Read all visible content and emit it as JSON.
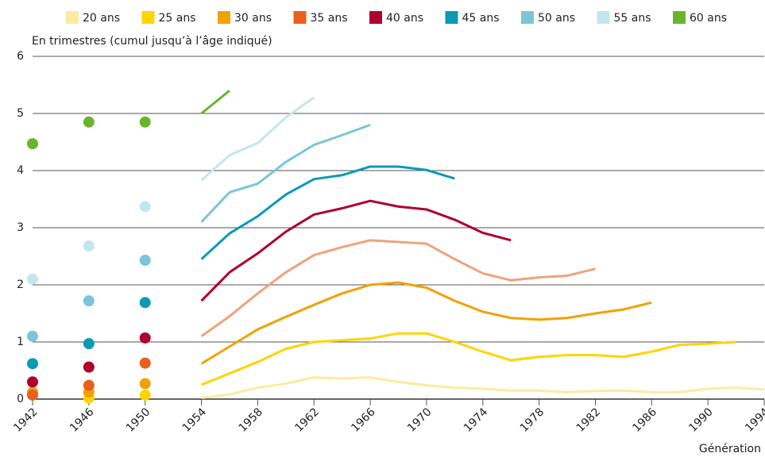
{
  "chart_data": {
    "type": "line",
    "y_label": "En trimestres (cumul jusqu’à l’âge indiqué)",
    "x_label": "Génération",
    "points_x": [
      1942,
      1946,
      1950
    ],
    "line_x": [
      1954,
      1956,
      1958,
      1960,
      1962,
      1964,
      1966,
      1968,
      1970,
      1972,
      1974,
      1976,
      1978,
      1980,
      1982,
      1984,
      1986,
      1988,
      1990,
      1992,
      1994
    ],
    "xlim": [
      1942,
      1994
    ],
    "xticks": [
      1942,
      1946,
      1950,
      1954,
      1958,
      1962,
      1966,
      1970,
      1974,
      1978,
      1982,
      1986,
      1990,
      1994
    ],
    "ylim": [
      0,
      6
    ],
    "yticks": [
      0,
      1,
      2,
      3,
      4,
      5,
      6
    ],
    "grid": true,
    "legend": "top",
    "series": [
      {
        "name": "20 ans",
        "color": "#fbeba0",
        "points": [
          null,
          null,
          null
        ],
        "values": [
          0.02,
          0.08,
          0.2,
          0.27,
          0.38,
          0.36,
          0.38,
          0.3,
          0.24,
          0.2,
          0.18,
          0.15,
          0.15,
          0.12,
          0.14,
          0.15,
          0.12,
          0.12,
          0.18,
          0.2,
          0.17
        ]
      },
      {
        "name": "25 ans",
        "color": "#ffd400",
        "points": [
          null,
          0.02,
          0.07
        ],
        "values": [
          0.25,
          0.45,
          0.65,
          0.88,
          1.0,
          1.03,
          1.06,
          1.15,
          1.15,
          1.0,
          0.83,
          0.68,
          0.74,
          0.77,
          0.77,
          0.74,
          0.83,
          0.95,
          0.97,
          1.0,
          null
        ]
      },
      {
        "name": "30 ans",
        "color": "#f2a100",
        "points": [
          0.12,
          0.12,
          0.27
        ],
        "values": [
          0.62,
          0.92,
          1.22,
          1.44,
          1.65,
          1.85,
          2.0,
          2.04,
          1.95,
          1.72,
          1.53,
          1.42,
          1.39,
          1.42,
          1.5,
          1.57,
          1.69,
          null,
          null,
          null,
          null
        ]
      },
      {
        "name": "35 ans",
        "color": "#e8601c",
        "line_color": "#f2a17c",
        "points": [
          0.07,
          0.24,
          0.63
        ],
        "values": [
          1.1,
          1.45,
          1.85,
          2.22,
          2.52,
          2.66,
          2.78,
          2.75,
          2.72,
          2.45,
          2.2,
          2.08,
          2.13,
          2.16,
          2.28,
          null,
          null,
          null,
          null,
          null,
          null
        ]
      },
      {
        "name": "40 ans",
        "color": "#b0002d",
        "points": [
          0.3,
          0.56,
          1.07
        ],
        "values": [
          1.72,
          2.22,
          2.55,
          2.93,
          3.23,
          3.34,
          3.47,
          3.37,
          3.32,
          3.14,
          2.91,
          2.78,
          null,
          null,
          null,
          null,
          null,
          null,
          null,
          null,
          null
        ]
      },
      {
        "name": "45 ans",
        "color": "#0a9ab5",
        "points": [
          0.62,
          0.97,
          1.69
        ],
        "values": [
          2.45,
          2.9,
          3.2,
          3.58,
          3.85,
          3.92,
          4.07,
          4.07,
          4.01,
          3.86,
          null,
          null,
          null,
          null,
          null,
          null,
          null,
          null,
          null,
          null,
          null
        ]
      },
      {
        "name": "50 ans",
        "color": "#79c6d8",
        "points": [
          1.1,
          1.72,
          2.43
        ],
        "values": [
          3.1,
          3.62,
          3.77,
          4.15,
          4.45,
          4.62,
          4.8,
          null,
          null,
          null,
          null,
          null,
          null,
          null,
          null,
          null,
          null,
          null,
          null,
          null,
          null
        ]
      },
      {
        "name": "55 ans",
        "color": "#c3e5ee",
        "points": [
          2.1,
          2.68,
          3.37
        ],
        "values": [
          3.83,
          4.27,
          4.48,
          4.93,
          5.28,
          null,
          null,
          null,
          null,
          null,
          null,
          null,
          null,
          null,
          null,
          null,
          null,
          null,
          null,
          null,
          null
        ]
      },
      {
        "name": "60 ans",
        "color": "#6ab42d",
        "points": [
          4.47,
          4.85,
          4.85
        ],
        "values": [
          5.0,
          5.4,
          null,
          null,
          null,
          null,
          null,
          null,
          null,
          null,
          null,
          null,
          null,
          null,
          null,
          null,
          null,
          null,
          null,
          null,
          null
        ]
      }
    ]
  }
}
